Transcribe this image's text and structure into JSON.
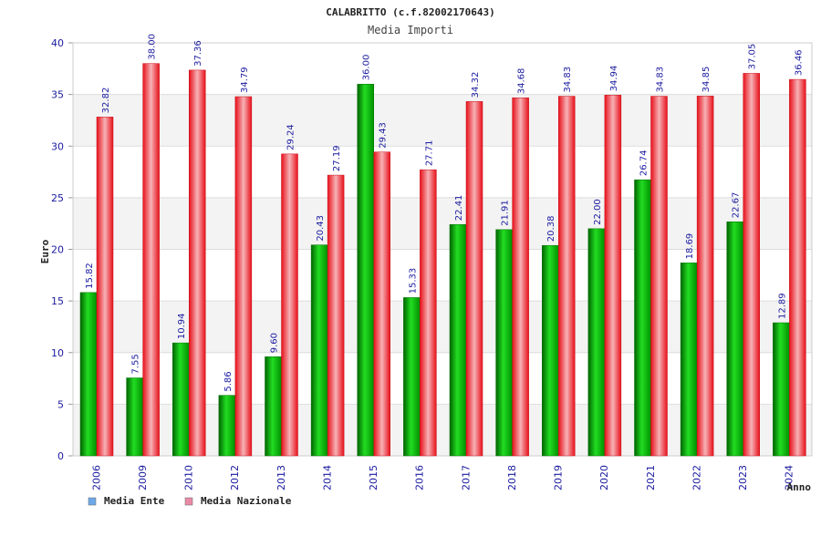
{
  "chart_data": {
    "type": "bar",
    "title": "CALABRITTO (c.f.82002170643)",
    "subtitle": "Media Importi",
    "xlabel": "Anno",
    "ylabel": "Euro",
    "ylim": [
      0,
      40
    ],
    "yticks": [
      0,
      5,
      10,
      15,
      20,
      25,
      30,
      35,
      40
    ],
    "grid": true,
    "legend_position": "bottom-left",
    "categories": [
      "2006",
      "2009",
      "2010",
      "2012",
      "2013",
      "2014",
      "2015",
      "2016",
      "2017",
      "2018",
      "2019",
      "2020",
      "2021",
      "2022",
      "2023",
      "2024"
    ],
    "series": [
      {
        "name": "Media Ente",
        "color": "#00b000",
        "legend_color": "#6fa8e8",
        "values": [
          15.82,
          7.55,
          10.94,
          5.86,
          9.6,
          20.43,
          36.0,
          15.33,
          22.41,
          21.91,
          20.38,
          22.0,
          26.74,
          18.69,
          22.67,
          12.89
        ],
        "labels": [
          "15.82",
          "7.55",
          "10.94",
          "5.86",
          "9.60",
          "20.43",
          "36.00",
          "15.33",
          "22.41",
          "21.91",
          "20.38",
          "22.00",
          "26.74",
          "18.69",
          "22.67",
          "12.89"
        ]
      },
      {
        "name": "Media Nazionale",
        "color": "#e81c24",
        "legend_color": "#e98aa6",
        "values": [
          32.82,
          38.0,
          37.36,
          34.79,
          29.24,
          27.19,
          29.43,
          27.71,
          34.32,
          34.68,
          34.83,
          34.94,
          34.83,
          34.85,
          37.05,
          36.46
        ],
        "labels": [
          "32.82",
          "38.00",
          "37.36",
          "34.79",
          "29.24",
          "27.19",
          "29.43",
          "27.71",
          "34.32",
          "34.68",
          "34.83",
          "34.94",
          "34.83",
          "34.85",
          "37.05",
          "36.46"
        ]
      }
    ]
  }
}
